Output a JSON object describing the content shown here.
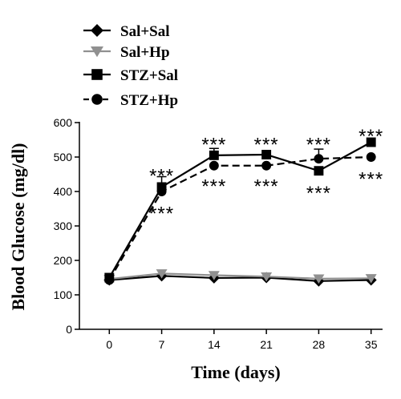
{
  "chart_data": {
    "type": "line",
    "title": "",
    "xlabel": "Time (days)",
    "ylabel": "Blood Glucose (mg/dl)",
    "x": [
      0,
      7,
      14,
      21,
      28,
      35
    ],
    "xticks": [
      "0",
      "7",
      "14",
      "21",
      "28",
      "35"
    ],
    "yticks": [
      "0",
      "100",
      "200",
      "300",
      "400",
      "500",
      "600"
    ],
    "xlim": [
      -4,
      39
    ],
    "ylim": [
      0,
      600
    ],
    "grid": false,
    "legend_position": "top-left",
    "series": [
      {
        "name": "Sal+Sal",
        "marker": "diamond",
        "color": "#000000",
        "dashed": false,
        "values": [
          143,
          155,
          149,
          150,
          140,
          143
        ],
        "errors": [
          0,
          0,
          0,
          0,
          0,
          0
        ]
      },
      {
        "name": "Sal+Hp",
        "marker": "triangle-down",
        "color": "#909090",
        "dashed": false,
        "values": [
          146,
          162,
          157,
          153,
          147,
          148
        ],
        "errors": [
          0,
          0,
          0,
          0,
          0,
          0
        ]
      },
      {
        "name": "STZ+Sal",
        "marker": "square",
        "color": "#000000",
        "dashed": false,
        "values": [
          150,
          413,
          505,
          507,
          460,
          543
        ],
        "errors": [
          0,
          30,
          20,
          0,
          0,
          0
        ]
      },
      {
        "name": "STZ+Hp",
        "marker": "circle",
        "color": "#000000",
        "dashed": true,
        "values": [
          143,
          400,
          475,
          475,
          495,
          500
        ],
        "errors": [
          0,
          0,
          0,
          0,
          28,
          0
        ]
      }
    ],
    "annotations": [
      {
        "text": "***",
        "x": 7,
        "y": 455
      },
      {
        "text": "***",
        "x": 7,
        "y": 345
      },
      {
        "text": "***",
        "x": 14,
        "y": 545
      },
      {
        "text": "***",
        "x": 14,
        "y": 425
      },
      {
        "text": "***",
        "x": 21,
        "y": 545
      },
      {
        "text": "***",
        "x": 21,
        "y": 425
      },
      {
        "text": "***",
        "x": 28,
        "y": 545
      },
      {
        "text": "***",
        "x": 28,
        "y": 405
      },
      {
        "text": "***",
        "x": 35,
        "y": 570
      },
      {
        "text": "***",
        "x": 35,
        "y": 445
      }
    ]
  }
}
